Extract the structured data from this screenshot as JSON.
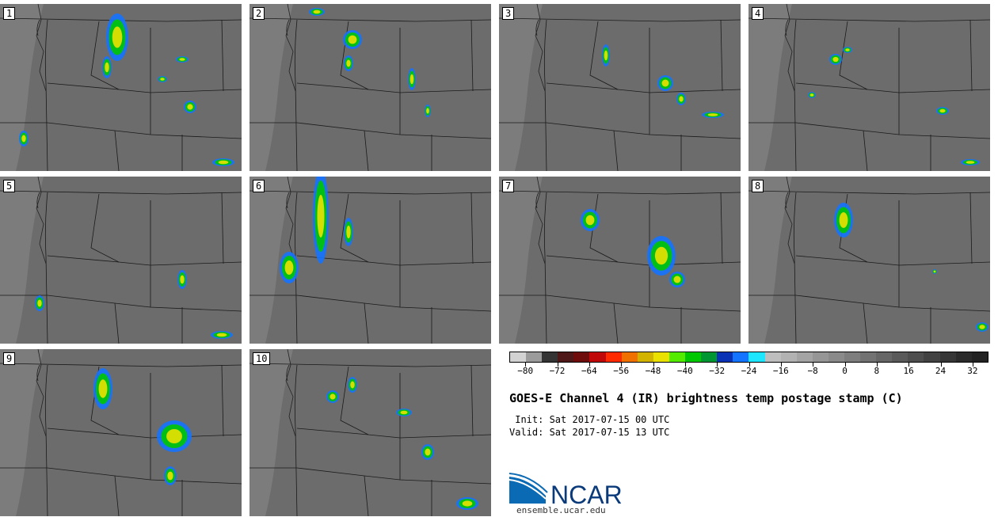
{
  "panels": [
    {
      "label": "1"
    },
    {
      "label": "2"
    },
    {
      "label": "3"
    },
    {
      "label": "4"
    },
    {
      "label": "5"
    },
    {
      "label": "6"
    },
    {
      "label": "7"
    },
    {
      "label": "8"
    },
    {
      "label": "9"
    },
    {
      "label": "10"
    }
  ],
  "colorbar": {
    "colors": [
      "#d2d2d2",
      "#9b9b9b",
      "#343434",
      "#4e1818",
      "#6e0c0c",
      "#c00808",
      "#ff2a00",
      "#f07000",
      "#d2b400",
      "#ebe100",
      "#55eb00",
      "#00c800",
      "#009632",
      "#0a32b4",
      "#1473ff",
      "#1ee6ff",
      "#bebebe",
      "#b2b2b2",
      "#a4a4a4",
      "#969696",
      "#8a8a8a",
      "#7e7e7e",
      "#727272",
      "#666666",
      "#5a5a5a",
      "#4e4e4e",
      "#424242",
      "#363636",
      "#2a2a2a",
      "#222222"
    ],
    "ticks": [
      "-80",
      "-72",
      "-64",
      "-56",
      "-48",
      "-40",
      "-32",
      "-24",
      "-16",
      "-8",
      "0",
      "8",
      "16",
      "24",
      "32"
    ]
  },
  "title": "GOES-E Channel 4 (IR) brightness temp postage stamp (C)",
  "init": " Init: Sat 2017-07-15 00 UTC",
  "valid": "Valid: Sat 2017-07-15 13 UTC",
  "logo_text": "NCAR",
  "site": "ensemble.ucar.edu"
}
